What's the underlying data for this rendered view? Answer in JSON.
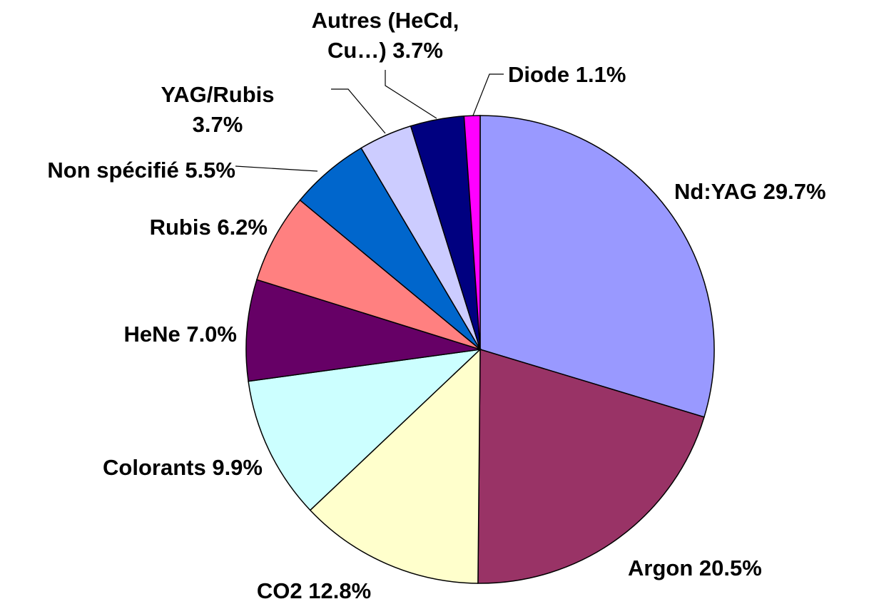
{
  "chart_data": {
    "type": "pie",
    "categories": [
      "Nd:YAG",
      "Argon",
      "CO2",
      "Colorants",
      "HeNe",
      "Rubis",
      "Non spécifié",
      "YAG/Rubis",
      "Autres (HeCd, Cu…)",
      "Diode"
    ],
    "values": [
      29.7,
      20.5,
      12.8,
      9.9,
      7.0,
      6.2,
      5.5,
      3.7,
      3.7,
      1.1
    ],
    "value_labels": [
      "29.7%",
      "20.5%",
      "12.8%",
      "9.9%",
      "7.0%",
      "6.2%",
      "5.5%",
      "3.7%",
      "3.7%",
      "1.1%"
    ],
    "colors": [
      "#9999ff",
      "#993366",
      "#ffffcc",
      "#ccffff",
      "#660066",
      "#ff8080",
      "#0066cc",
      "#ccccff",
      "#000080",
      "#ff00ff"
    ]
  }
}
